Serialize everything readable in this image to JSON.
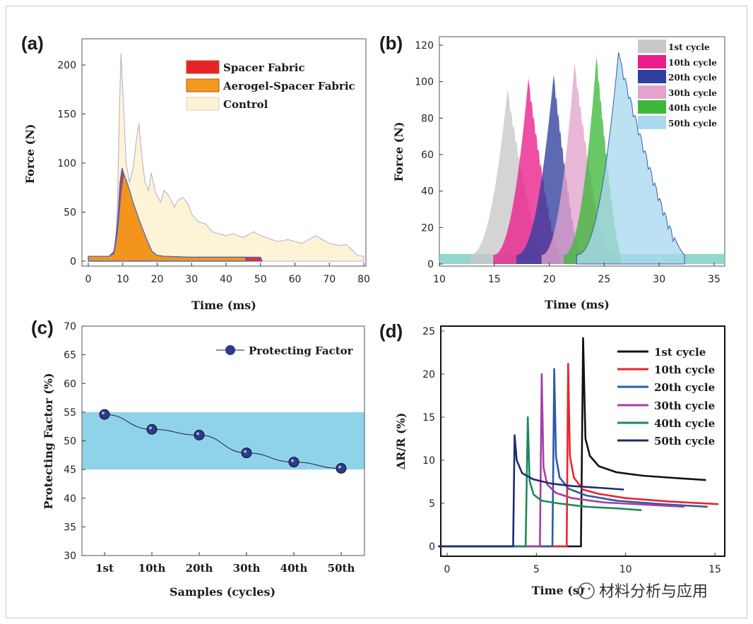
{
  "chart_data": [
    {
      "panel": "(a)",
      "type": "area",
      "xlabel": "Time (ms)",
      "ylabel": "Force (N)",
      "xlim": [
        0,
        80
      ],
      "ylim": [
        0,
        220
      ],
      "xticks": [
        0,
        10,
        20,
        30,
        40,
        50,
        60,
        70,
        80
      ],
      "yticks": [
        0,
        50,
        100,
        150,
        200
      ],
      "legend_position": "top-right",
      "series": [
        {
          "name": "Spacer Fabric",
          "color": "#e8232a",
          "x": [
            0,
            6,
            7.5,
            8.5,
            9.2,
            9.8,
            10.4,
            11,
            12,
            13,
            15,
            17,
            18.5,
            20,
            22,
            30,
            40,
            50,
            50.5
          ],
          "y": [
            5,
            5,
            10,
            40,
            80,
            95,
            88,
            82,
            70,
            58,
            38,
            20,
            10,
            6,
            5,
            4,
            4,
            4,
            0
          ]
        },
        {
          "name": "Aerogel-Spacer Fabric",
          "color": "#f39a1c",
          "x": [
            0,
            6,
            7.5,
            8.5,
            9.5,
            10.2,
            11,
            12,
            13,
            15,
            17,
            18.5,
            20,
            22,
            30,
            40,
            45.5,
            46
          ],
          "y": [
            5,
            5,
            8,
            30,
            70,
            88,
            83,
            72,
            60,
            40,
            22,
            10,
            6,
            5,
            4,
            4,
            4,
            0
          ]
        },
        {
          "name": "Control",
          "color": "#fdf3d3",
          "x": [
            0,
            6,
            7,
            8,
            8.5,
            9,
            9.5,
            10,
            11,
            12,
            13,
            14,
            14.7,
            15.5,
            16.5,
            17.5,
            18.3,
            19.5,
            21,
            22,
            23.5,
            25,
            26,
            27.5,
            29,
            30,
            32,
            34,
            36,
            38,
            40,
            42,
            45,
            48,
            50,
            55,
            58,
            62,
            66,
            68,
            70,
            73,
            75,
            77,
            78,
            80
          ],
          "y": [
            5,
            5,
            6,
            20,
            60,
            150,
            212,
            175,
            100,
            80,
            95,
            125,
            140,
            108,
            80,
            72,
            90,
            70,
            60,
            72,
            66,
            55,
            62,
            65,
            58,
            48,
            40,
            38,
            30,
            28,
            26,
            28,
            24,
            30,
            26,
            20,
            22,
            18,
            26,
            22,
            18,
            16,
            17,
            10,
            6,
            5
          ]
        }
      ]
    },
    {
      "panel": "(b)",
      "type": "area",
      "xlabel": "Time (ms)",
      "ylabel": "Force (N)",
      "xlim": [
        10,
        36
      ],
      "ylim": [
        0,
        120
      ],
      "xticks": [
        10,
        15,
        20,
        25,
        30,
        35
      ],
      "yticks": [
        0,
        20,
        40,
        60,
        80,
        100,
        120
      ],
      "legend_position": "top-right",
      "series": [
        {
          "name": "1st cycle",
          "color": "#c8c8c8",
          "peak_x": 16.2,
          "peak_y": 96,
          "rise": 3.4,
          "fall": 3.2
        },
        {
          "name": "10th cycle",
          "color": "#e91e8c",
          "peak_x": 18.1,
          "peak_y": 102,
          "rise": 3.2,
          "fall": 2.8
        },
        {
          "name": "20th cycle",
          "color": "#2f3f9e",
          "peak_x": 20.4,
          "peak_y": 104,
          "rise": 3.4,
          "fall": 2.4
        },
        {
          "name": "30th cycle",
          "color": "#e3a3cc",
          "peak_x": 22.3,
          "peak_y": 110,
          "rise": 3.0,
          "fall": 3.0
        },
        {
          "name": "40th cycle",
          "color": "#3fb83a",
          "peak_x": 24.3,
          "peak_y": 114,
          "rise": 3.0,
          "fall": 2.2
        },
        {
          "name": "50th cycle",
          "color": "#a9d9ee",
          "peak_x": 26.3,
          "peak_y": 116,
          "rise": 3.8,
          "fall": 6.0
        }
      ]
    },
    {
      "panel": "(c)",
      "type": "line",
      "xlabel": "Samples (cycles)",
      "ylabel": "Protecting Factor (%)",
      "categories": [
        "1st",
        "10th",
        "20th",
        "30th",
        "40th",
        "50th"
      ],
      "values": [
        54.6,
        52.0,
        51.0,
        47.9,
        46.3,
        45.2
      ],
      "ylim": [
        30,
        70
      ],
      "yticks": [
        30,
        35,
        40,
        45,
        50,
        55,
        60,
        65,
        70
      ],
      "band": [
        45,
        55
      ],
      "band_color": "#8fd3ea",
      "legend": "Protecting Factor",
      "legend_position": "top-right",
      "marker_color": "#2b3b8f"
    },
    {
      "panel": "(d)",
      "type": "line",
      "xlabel": "Time (s)",
      "ylabel": "ΔR/R (%)",
      "xlim": [
        -0.8,
        15.3
      ],
      "ylim": [
        -1.3,
        25.5
      ],
      "xticks": [
        0,
        5,
        10,
        15
      ],
      "yticks": [
        0,
        5,
        10,
        15,
        20,
        25
      ],
      "legend_position": "top-right",
      "series": [
        {
          "name": "1st cycle",
          "color": "#111111",
          "x": [
            -0.5,
            7.5,
            7.5,
            7.62,
            7.75,
            8.0,
            8.5,
            9.5,
            11,
            13,
            14.5
          ],
          "y": [
            0,
            0,
            0.5,
            24.2,
            12.5,
            10.5,
            9.3,
            8.6,
            8.2,
            7.9,
            7.7
          ]
        },
        {
          "name": "10th cycle",
          "color": "#e8262a",
          "x": [
            -0.5,
            6.7,
            6.7,
            6.78,
            6.88,
            7.1,
            7.6,
            8.5,
            10,
            12.5,
            15.2
          ],
          "y": [
            0,
            0,
            0.5,
            21.2,
            10.5,
            8.0,
            6.6,
            6.1,
            5.6,
            5.2,
            4.9
          ]
        },
        {
          "name": "20th cycle",
          "color": "#2c5aa8",
          "x": [
            -0.5,
            5.9,
            5.9,
            6.0,
            6.1,
            6.3,
            6.8,
            7.8,
            9.5,
            12,
            14.6
          ],
          "y": [
            0,
            0,
            0.5,
            20.6,
            10.4,
            8.0,
            6.7,
            5.9,
            5.3,
            4.9,
            4.6
          ]
        },
        {
          "name": "30th cycle",
          "color": "#a43fa8",
          "x": [
            -0.5,
            5.2,
            5.2,
            5.3,
            5.4,
            5.6,
            6.1,
            7.0,
            8.8,
            11.5,
            13.3
          ],
          "y": [
            0,
            0,
            0.5,
            20.0,
            9.2,
            7.2,
            6.2,
            5.6,
            5.1,
            4.8,
            4.6
          ]
        },
        {
          "name": "40th cycle",
          "color": "#1c8a5b",
          "x": [
            -0.5,
            4.4,
            4.4,
            4.52,
            4.62,
            4.85,
            5.3,
            6.2,
            7.8,
            9.6,
            10.9
          ],
          "y": [
            0,
            0,
            0.5,
            15.0,
            7.6,
            6.0,
            5.3,
            5.0,
            4.6,
            4.4,
            4.2
          ]
        },
        {
          "name": "50th cycle",
          "color": "#1f2a70",
          "x": [
            -0.5,
            3.7,
            3.7,
            3.78,
            3.9,
            4.2,
            4.8,
            5.8,
            7.0,
            8.5,
            9.9
          ],
          "y": [
            0,
            0,
            0.5,
            12.9,
            10.0,
            8.5,
            7.8,
            7.3,
            7.0,
            6.8,
            6.6
          ]
        }
      ]
    }
  ],
  "watermark": "材料分析与应用"
}
